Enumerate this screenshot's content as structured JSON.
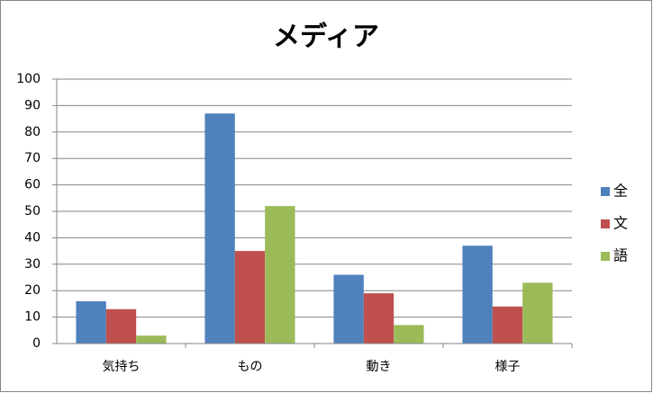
{
  "chart_data": {
    "type": "bar",
    "title": "メディア",
    "categories": [
      "気持ち",
      "もの",
      "動き",
      "様子"
    ],
    "series": [
      {
        "name": "全",
        "color": "#4f81bd",
        "values": [
          16,
          87,
          26,
          37
        ]
      },
      {
        "name": "文",
        "color": "#c0504d",
        "values": [
          13,
          35,
          19,
          14
        ]
      },
      {
        "name": "語",
        "color": "#9bbb59",
        "values": [
          3,
          52,
          7,
          23
        ]
      }
    ],
    "ylim": [
      0,
      100
    ],
    "yticks": [
      0,
      10,
      20,
      30,
      40,
      50,
      60,
      70,
      80,
      90,
      100
    ],
    "grid": true,
    "legend": "right"
  }
}
